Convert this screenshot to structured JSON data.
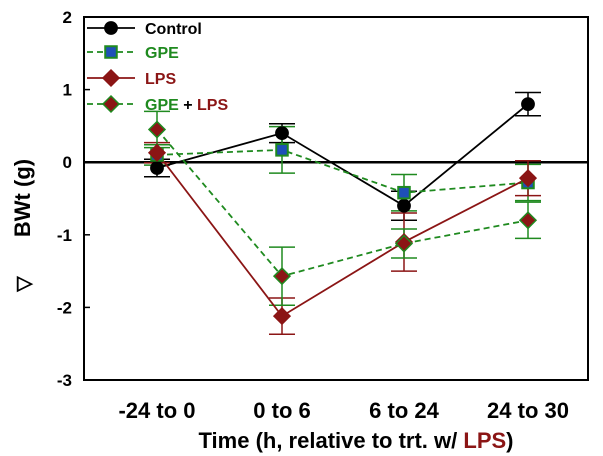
{
  "chart_data": {
    "type": "line",
    "title": "",
    "xlabel": {
      "prefix": "Time (h, relative to trt. w/ ",
      "highlight": "LPS",
      "suffix": ")"
    },
    "ylabel": {
      "symbol": "▽",
      "text": "BWt (g)"
    },
    "categories": [
      "-24 to 0",
      "0 to 6",
      "6 to 24",
      "24 to 30"
    ],
    "ylim": [
      -3,
      2
    ],
    "yticks": [
      "2",
      "1",
      "0",
      "-1",
      "-2",
      "-3"
    ],
    "grid": false,
    "zero_line": true,
    "legend_position": "top-left",
    "series": [
      {
        "name": "Control",
        "name_parts": [
          {
            "text": "Control",
            "color": "#000000"
          }
        ],
        "color": "#000000",
        "marker": "circle",
        "marker_fill": "#000000",
        "dashed": false,
        "values": [
          -0.08,
          0.4,
          -0.6,
          0.8
        ],
        "errors": [
          0.12,
          0.13,
          0.2,
          0.16
        ]
      },
      {
        "name": "GPE",
        "name_parts": [
          {
            "text": "GPE",
            "color": "#1f8a1f"
          }
        ],
        "color": "#1f8a1f",
        "marker": "square",
        "marker_fill": "#1f4fb8",
        "dashed": true,
        "values": [
          0.1,
          0.17,
          -0.42,
          -0.28
        ],
        "errors": [
          0.14,
          0.32,
          0.25,
          0.25
        ]
      },
      {
        "name": "LPS",
        "name_parts": [
          {
            "text": "LPS",
            "color": "#8b1515"
          }
        ],
        "color": "#8b1515",
        "marker": "diamond",
        "marker_fill": "#8b1515",
        "dashed": false,
        "values": [
          0.13,
          -2.12,
          -1.1,
          -0.22
        ],
        "errors": [
          0.14,
          0.25,
          0.4,
          0.24
        ]
      },
      {
        "name": "GPE + LPS",
        "name_parts": [
          {
            "text": "GPE",
            "color": "#1f8a1f"
          },
          {
            "text": " + ",
            "color": "#000000"
          },
          {
            "text": "LPS",
            "color": "#8b1515"
          }
        ],
        "color": "#1f8a1f",
        "marker": "diamond",
        "marker_fill": "#8b1515",
        "dashed": true,
        "values": [
          0.45,
          -1.57,
          -1.12,
          -0.8
        ],
        "errors": [
          0.25,
          0.4,
          0.2,
          0.25
        ]
      }
    ]
  }
}
